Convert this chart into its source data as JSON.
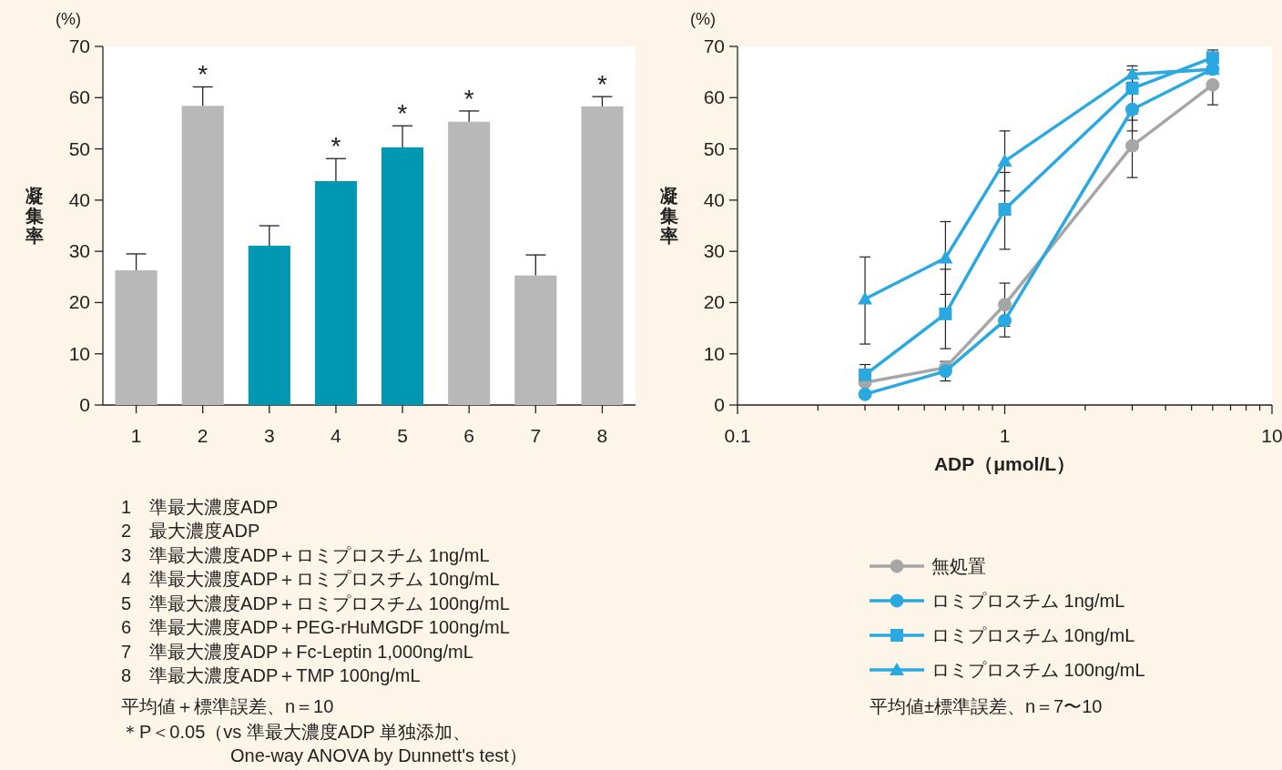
{
  "chart_data": [
    {
      "type": "bar",
      "ylabel": "凝集率",
      "categories": [
        "1",
        "2",
        "3",
        "4",
        "5",
        "6",
        "7",
        "8"
      ],
      "values": [
        26.3,
        58.4,
        31.1,
        43.7,
        50.3,
        55.3,
        25.3,
        58.3
      ],
      "colors": [
        "#b8b8b8",
        "#b8b8b8",
        "#0097b2",
        "#0097b2",
        "#0097b2",
        "#b8b8b8",
        "#b8b8b8",
        "#b8b8b8"
      ],
      "errors": [
        [
          26.3,
          29.5
        ],
        [
          58.4,
          62.1
        ],
        [
          31.1,
          35.0
        ],
        [
          43.7,
          48.1
        ],
        [
          50.3,
          54.5
        ],
        [
          55.3,
          57.4
        ],
        [
          25.3,
          29.3
        ],
        [
          58.3,
          60.2
        ]
      ],
      "ylim": [
        0,
        70
      ],
      "yticks": [
        0,
        10,
        20,
        30,
        40,
        50,
        60,
        70
      ],
      "annotations": [
        "(%)",
        {
          "text": "*",
          "x": "2",
          "y": 62.1
        },
        {
          "text": "*",
          "x": "4",
          "y": 48.1
        },
        {
          "text": "*",
          "x": "5",
          "y": 54.5
        },
        {
          "text": "*",
          "x": "6",
          "y": 57.4
        },
        {
          "text": "*",
          "x": "8",
          "y": 60.2
        },
        "1　準最大濃度ADP",
        "2　最大濃度ADP",
        "3　準最大濃度ADP＋ロミプロスチム 1ng/mL",
        "4　準最大濃度ADP＋ロミプロスチム 10ng/mL",
        "5　準最大濃度ADP＋ロミプロスチム 100ng/mL",
        "6　準最大濃度ADP＋PEG-rHuMGDF 100ng/mL",
        "7　準最大濃度ADP＋Fc-Leptin 1,000ng/mL",
        "8　準最大濃度ADP＋TMP 100ng/mL",
        "平均値＋標準誤差、n＝10",
        "＊P＜0.05（vs 準最大濃度ADP 単独添加、",
        "One-way ANOVA by Dunnett's test）"
      ]
    },
    {
      "type": "line",
      "ylabel": "凝集率",
      "xlabel": "ADP（μmol/L）",
      "log": "x",
      "legend": "bottom",
      "x": [
        0.3,
        0.6,
        1,
        3,
        6
      ],
      "series": [
        {
          "name": "無処置",
          "color": "#a6a6a6",
          "marker": "circle",
          "values": [
            4.4,
            7.3,
            19.6,
            50.6,
            62.5
          ],
          "errors": [
            null,
            null,
            [
              15.4,
              23.8
            ],
            [
              44.4,
              56.8
            ],
            [
              58.6,
              62.5
            ]
          ]
        },
        {
          "name": "ロミプロスチム 1ng/mL",
          "color": "#2aa8e0",
          "marker": "circle",
          "values": [
            2.1,
            6.6,
            16.5,
            57.7,
            65.6
          ],
          "errors": [
            null,
            [
              4.7,
              8.5
            ],
            [
              13.3,
              16.5
            ],
            [
              53.5,
              57.7
            ],
            null
          ]
        },
        {
          "name": "ロミプロスチム 10ng/mL",
          "color": "#2aa8e0",
          "marker": "square",
          "values": [
            5.9,
            17.8,
            38.2,
            61.8,
            67.8
          ],
          "errors": [
            [
              3.9,
              7.9
            ],
            [
              11.0,
              26.5
            ],
            [
              30.4,
              45.4
            ],
            [
              55.6,
              65.4
            ],
            [
              67.8,
              69.3
            ]
          ]
        },
        {
          "name": "ロミプロスチム 100ng/mL",
          "color": "#2aa8e0",
          "marker": "triangle",
          "values": [
            20.7,
            28.7,
            47.6,
            64.6,
            65.5
          ],
          "errors": [
            [
              11.9,
              28.9
            ],
            [
              21.6,
              35.8
            ],
            [
              41.8,
              53.5
            ],
            [
              63.0,
              66.2
            ],
            null
          ]
        }
      ],
      "xlim": [
        0.1,
        10
      ],
      "xticks": [
        0.1,
        {
          "value": 0.2,
          "label": null
        },
        {
          "value": 0.3,
          "label": null
        },
        {
          "value": 0.4,
          "label": null
        },
        {
          "value": 0.5,
          "label": null
        },
        {
          "value": 0.6,
          "label": null
        },
        {
          "value": 0.7,
          "label": null
        },
        {
          "value": 0.8,
          "label": null
        },
        {
          "value": 0.9,
          "label": null
        },
        1,
        {
          "value": 2,
          "label": null
        },
        {
          "value": 3,
          "label": null
        },
        {
          "value": 4,
          "label": null
        },
        {
          "value": 5,
          "label": null
        },
        {
          "value": 6,
          "label": null
        },
        {
          "value": 7,
          "label": null
        },
        {
          "value": 8,
          "label": null
        },
        {
          "value": 9,
          "label": null
        },
        10
      ],
      "ylim": [
        0,
        70
      ],
      "yticks": [
        0,
        10,
        20,
        30,
        40,
        50,
        60,
        70
      ],
      "annotations": [
        "(%)",
        "平均値±標準誤差、n＝7〜10"
      ]
    }
  ]
}
